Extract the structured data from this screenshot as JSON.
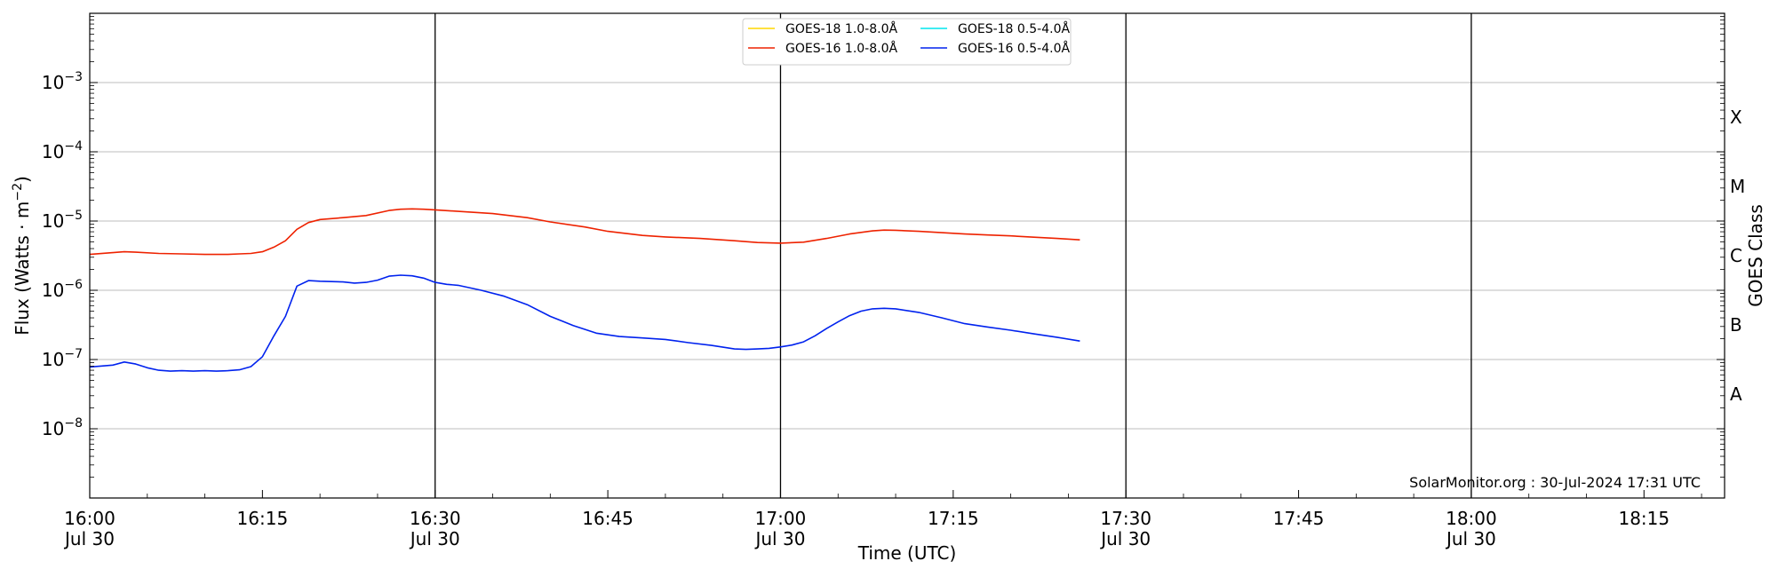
{
  "chart_data": {
    "type": "line",
    "title": "",
    "xlabel": "Time (UTC)",
    "ylabel": "Flux (Watts · m^-2)",
    "ylabel_right": "GOES Class",
    "yscale": "log",
    "ylim": [
      1e-09,
      0.01
    ],
    "xlim": [
      "16:00",
      "18:22"
    ],
    "x_tick_labels": [
      {
        "time": "16:00",
        "line1": "16:00",
        "line2": "Jul 30"
      },
      {
        "time": "16:15",
        "line1": "16:15",
        "line2": ""
      },
      {
        "time": "16:30",
        "line1": "16:30",
        "line2": "Jul 30"
      },
      {
        "time": "16:45",
        "line1": "16:45",
        "line2": ""
      },
      {
        "time": "17:00",
        "line1": "17:00",
        "line2": "Jul 30"
      },
      {
        "time": "17:15",
        "line1": "17:15",
        "line2": ""
      },
      {
        "time": "17:30",
        "line1": "17:30",
        "line2": "Jul 30"
      },
      {
        "time": "17:45",
        "line1": "17:45",
        "line2": ""
      },
      {
        "time": "18:00",
        "line1": "18:00",
        "line2": "Jul 30"
      },
      {
        "time": "18:15",
        "line1": "18:15",
        "line2": ""
      }
    ],
    "y_tick_exponents": [
      -8,
      -7,
      -6,
      -5,
      -4,
      -3
    ],
    "y_tick_base": "10",
    "vertical_lines": [
      "16:30",
      "17:00",
      "17:30",
      "18:00"
    ],
    "goes_classes": [
      {
        "label": "A",
        "value": 3.16e-08
      },
      {
        "label": "B",
        "value": 3.16e-07
      },
      {
        "label": "C",
        "value": 3.16e-06
      },
      {
        "label": "M",
        "value": 3.16e-05
      },
      {
        "label": "X",
        "value": 0.000316
      }
    ],
    "grid": true,
    "legend_position": "top-center",
    "legend": [
      {
        "name": "GOES-18 1.0-8.0Å",
        "color": "#ffd700"
      },
      {
        "name": "GOES-18 0.5-4.0Å",
        "color": "#00e5ee"
      },
      {
        "name": "GOES-16 1.0-8.0Å",
        "color": "#ee2200"
      },
      {
        "name": "GOES-16 0.5-4.0Å",
        "color": "#0022ee"
      }
    ],
    "series": [
      {
        "name": "GOES-16 1.0-8.0Å",
        "color": "#ee2200",
        "x": [
          "16:00",
          "16:02",
          "16:03",
          "16:04",
          "16:06",
          "16:08",
          "16:10",
          "16:12",
          "16:13",
          "16:14",
          "16:15",
          "16:16",
          "16:17",
          "16:18",
          "16:19",
          "16:20",
          "16:22",
          "16:24",
          "16:26",
          "16:27",
          "16:28",
          "16:29",
          "16:30",
          "16:32",
          "16:35",
          "16:38",
          "16:40",
          "16:43",
          "16:45",
          "16:48",
          "16:50",
          "16:53",
          "16:56",
          "16:58",
          "17:00",
          "17:02",
          "17:04",
          "17:06",
          "17:08",
          "17:09",
          "17:10",
          "17:12",
          "17:14",
          "17:16",
          "17:18",
          "17:20",
          "17:22",
          "17:24",
          "17:26"
        ],
        "y": [
          3.3e-06,
          3.5e-06,
          3.6e-06,
          3.55e-06,
          3.4e-06,
          3.35e-06,
          3.3e-06,
          3.3e-06,
          3.35e-06,
          3.4e-06,
          3.6e-06,
          4.2e-06,
          5.2e-06,
          7.6e-06,
          9.5e-06,
          1.05e-05,
          1.12e-05,
          1.2e-05,
          1.42e-05,
          1.48e-05,
          1.5e-05,
          1.48e-05,
          1.45e-05,
          1.38e-05,
          1.28e-05,
          1.12e-05,
          9.7e-06,
          8.2e-06,
          7.1e-06,
          6.2e-06,
          5.9e-06,
          5.6e-06,
          5.2e-06,
          4.9e-06,
          4.8e-06,
          4.95e-06,
          5.6e-06,
          6.5e-06,
          7.2e-06,
          7.4e-06,
          7.35e-06,
          7.1e-06,
          6.8e-06,
          6.5e-06,
          6.3e-06,
          6.1e-06,
          5.85e-06,
          5.6e-06,
          5.35e-06
        ]
      },
      {
        "name": "GOES-16 0.5-4.0Å",
        "color": "#0022ee",
        "x": [
          "16:00",
          "16:02",
          "16:03",
          "16:04",
          "16:05",
          "16:06",
          "16:07",
          "16:08",
          "16:09",
          "16:10",
          "16:11",
          "16:12",
          "16:13",
          "16:14",
          "16:15",
          "16:16",
          "16:17",
          "16:18",
          "16:19",
          "16:20",
          "16:22",
          "16:23",
          "16:24",
          "16:25",
          "16:26",
          "16:27",
          "16:28",
          "16:29",
          "16:30",
          "16:31",
          "16:32",
          "16:34",
          "16:36",
          "16:38",
          "16:40",
          "16:42",
          "16:44",
          "16:46",
          "16:48",
          "16:50",
          "16:52",
          "16:54",
          "16:56",
          "16:57",
          "16:58",
          "16:59",
          "17:00",
          "17:01",
          "17:02",
          "17:03",
          "17:04",
          "17:05",
          "17:06",
          "17:07",
          "17:08",
          "17:09",
          "17:10",
          "17:12",
          "17:14",
          "17:16",
          "17:18",
          "17:20",
          "17:22",
          "17:24",
          "17:26"
        ],
        "y": [
          7.8e-08,
          8.3e-08,
          9.2e-08,
          8.6e-08,
          7.6e-08,
          7e-08,
          6.8e-08,
          6.9e-08,
          6.8e-08,
          6.9e-08,
          6.8e-08,
          6.9e-08,
          7.1e-08,
          7.9e-08,
          1.1e-07,
          2.2e-07,
          4.2e-07,
          1.15e-06,
          1.38e-06,
          1.35e-06,
          1.32e-06,
          1.27e-06,
          1.3e-06,
          1.4e-06,
          1.6e-06,
          1.65e-06,
          1.62e-06,
          1.5e-06,
          1.3e-06,
          1.22e-06,
          1.18e-06,
          1e-06,
          8.2e-07,
          6.2e-07,
          4.2e-07,
          3.1e-07,
          2.4e-07,
          2.15e-07,
          2.05e-07,
          1.95e-07,
          1.75e-07,
          1.6e-07,
          1.42e-07,
          1.4e-07,
          1.42e-07,
          1.45e-07,
          1.52e-07,
          1.62e-07,
          1.8e-07,
          2.2e-07,
          2.8e-07,
          3.5e-07,
          4.3e-07,
          5e-07,
          5.4e-07,
          5.5e-07,
          5.4e-07,
          4.8e-07,
          4e-07,
          3.3e-07,
          2.95e-07,
          2.65e-07,
          2.35e-07,
          2.1e-07,
          1.85e-07
        ]
      }
    ],
    "annotation": "SolarMonitor.org : 30-Jul-2024 17:31 UTC"
  }
}
